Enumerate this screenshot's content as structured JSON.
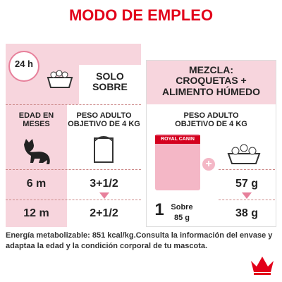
{
  "title": "MODO DE EMPLEO",
  "clock": "24 h",
  "left_panel": {
    "header": [
      "SOLO",
      "SOBRE"
    ],
    "column_headers": [
      [
        "EDAD EN",
        "MESES"
      ],
      [
        "PESO ADULTO",
        "OBJETIVO DE 4 KG"
      ]
    ],
    "rows": [
      [
        "6 m",
        "3+1/2"
      ],
      [
        "12 m",
        "2+1/2"
      ]
    ]
  },
  "right_panel": {
    "header": [
      "MEZCLA:",
      "CROQUETAS +",
      "ALIMENTO HÚMEDO"
    ],
    "subheader": [
      "PESO ADULTO",
      "OBJETIVO DE 4 KG"
    ],
    "pouch_brand": "ROYAL CANIN",
    "pouch": {
      "count": "1",
      "unit": "Sobre",
      "weight": "85 g"
    },
    "plus": "+",
    "dry": [
      "57 g",
      "38 g"
    ]
  },
  "notes": [
    "Energía metabolizable: 851 kcal/kg.",
    "Consulta la información del envase y adapta",
    "a la edad y la condición corporal de tu mascota."
  ]
}
